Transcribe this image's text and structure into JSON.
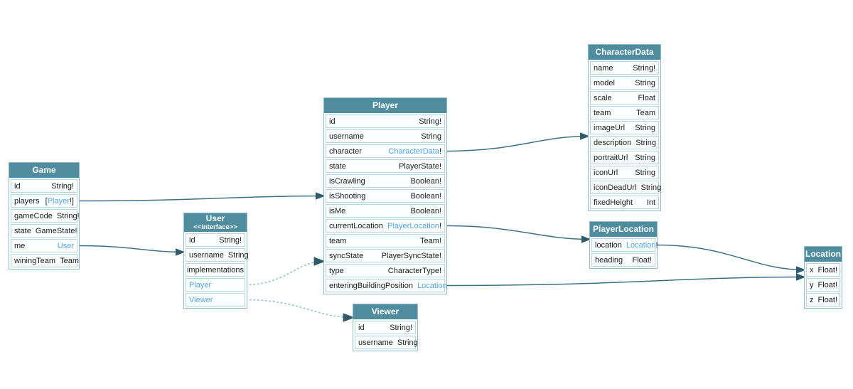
{
  "diagram": {
    "entities": [
      {
        "key": "game",
        "title": "Game",
        "fields": [
          {
            "name": "id",
            "type": [
              {
                "t": "String!"
              }
            ]
          },
          {
            "name": "players",
            "type": [
              {
                "t": "["
              },
              {
                "t": "Player",
                "link": true
              },
              {
                "t": "!]"
              }
            ]
          },
          {
            "name": "gameCode",
            "type": [
              {
                "t": "String!"
              }
            ]
          },
          {
            "name": "state",
            "type": [
              {
                "t": "GameState!"
              }
            ]
          },
          {
            "name": "me",
            "type": [
              {
                "t": "User",
                "link": true
              }
            ]
          },
          {
            "name": "winingTeam",
            "type": [
              {
                "t": "Team"
              }
            ]
          }
        ]
      },
      {
        "key": "user",
        "title": "User",
        "subtitle": "<<interface>>",
        "fields": [
          {
            "name": "id",
            "type": [
              {
                "t": "String!"
              }
            ]
          },
          {
            "name": "username",
            "type": [
              {
                "t": "String"
              }
            ]
          },
          {
            "name": "implementations",
            "section": true
          },
          {
            "name": "Player",
            "nameLink": true
          },
          {
            "name": "Viewer",
            "nameLink": true
          }
        ]
      },
      {
        "key": "player",
        "title": "Player",
        "fields": [
          {
            "name": "id",
            "type": [
              {
                "t": "String!"
              }
            ]
          },
          {
            "name": "username",
            "type": [
              {
                "t": "String"
              }
            ]
          },
          {
            "name": "character",
            "type": [
              {
                "t": "CharacterData",
                "link": true
              },
              {
                "t": "!"
              }
            ]
          },
          {
            "name": "state",
            "type": [
              {
                "t": "PlayerState!"
              }
            ]
          },
          {
            "name": "isCrawling",
            "type": [
              {
                "t": "Boolean!"
              }
            ]
          },
          {
            "name": "isShooting",
            "type": [
              {
                "t": "Boolean!"
              }
            ]
          },
          {
            "name": "isMe",
            "type": [
              {
                "t": "Boolean!"
              }
            ]
          },
          {
            "name": "currentLocation",
            "type": [
              {
                "t": "PlayerLocation",
                "link": true
              },
              {
                "t": "!"
              }
            ]
          },
          {
            "name": "team",
            "type": [
              {
                "t": "Team!"
              }
            ]
          },
          {
            "name": "syncState",
            "type": [
              {
                "t": "PlayerSyncState!"
              }
            ]
          },
          {
            "name": "type",
            "type": [
              {
                "t": "CharacterType!"
              }
            ]
          },
          {
            "name": "enteringBuildingPosition",
            "type": [
              {
                "t": "Location",
                "link": true
              }
            ]
          }
        ]
      },
      {
        "key": "viewer",
        "title": "Viewer",
        "fields": [
          {
            "name": "id",
            "type": [
              {
                "t": "String!"
              }
            ]
          },
          {
            "name": "username",
            "type": [
              {
                "t": "String"
              }
            ]
          }
        ]
      },
      {
        "key": "characterdata",
        "title": "CharacterData",
        "fields": [
          {
            "name": "name",
            "type": [
              {
                "t": "String!"
              }
            ]
          },
          {
            "name": "model",
            "type": [
              {
                "t": "String"
              }
            ]
          },
          {
            "name": "scale",
            "type": [
              {
                "t": "Float"
              }
            ]
          },
          {
            "name": "team",
            "type": [
              {
                "t": "Team"
              }
            ]
          },
          {
            "name": "imageUrl",
            "type": [
              {
                "t": "String"
              }
            ]
          },
          {
            "name": "description",
            "type": [
              {
                "t": "String"
              }
            ]
          },
          {
            "name": "portraitUrl",
            "type": [
              {
                "t": "String"
              }
            ]
          },
          {
            "name": "iconUrl",
            "type": [
              {
                "t": "String"
              }
            ]
          },
          {
            "name": "iconDeadUrl",
            "type": [
              {
                "t": "String"
              }
            ]
          },
          {
            "name": "fixedHeight",
            "type": [
              {
                "t": "Int"
              }
            ]
          }
        ]
      },
      {
        "key": "playerlocation",
        "title": "PlayerLocation",
        "fields": [
          {
            "name": "location",
            "type": [
              {
                "t": "Location",
                "link": true
              },
              {
                "t": "!"
              }
            ]
          },
          {
            "name": "heading",
            "type": [
              {
                "t": "Float!"
              }
            ]
          }
        ]
      },
      {
        "key": "location",
        "title": "Location",
        "fields": [
          {
            "name": "x",
            "type": [
              {
                "t": "Float!"
              }
            ]
          },
          {
            "name": "y",
            "type": [
              {
                "t": "Float!"
              }
            ]
          },
          {
            "name": "z",
            "type": [
              {
                "t": "Float!"
              }
            ]
          }
        ]
      }
    ],
    "edges": [
      {
        "from": "game.players",
        "to": "player.isShooting",
        "style": "solid"
      },
      {
        "from": "game.me",
        "to": "user.username",
        "style": "solid"
      },
      {
        "from": "user.Player",
        "to": "player.syncState",
        "style": "dotted"
      },
      {
        "from": "user.Viewer",
        "to": "viewer.id",
        "style": "dotted"
      },
      {
        "from": "player.character",
        "to": "characterdata.description",
        "style": "solid"
      },
      {
        "from": "player.currentLocation",
        "to": "playerlocation.location",
        "style": "solid"
      },
      {
        "from": "player.enteringBuildingPosition",
        "to": "location.x",
        "style": "solid"
      },
      {
        "from": "playerlocation.location",
        "to": "location.x",
        "style": "solid"
      }
    ],
    "colors": {
      "header": "#4e8c9e",
      "link": "#54a4e5",
      "edge": "#3e7183",
      "edge_dotted": "#a3c8d1",
      "arrowhead": "#2e5a6a",
      "entity_border": "#93bcc8",
      "row_border": "#b9d6de"
    }
  }
}
